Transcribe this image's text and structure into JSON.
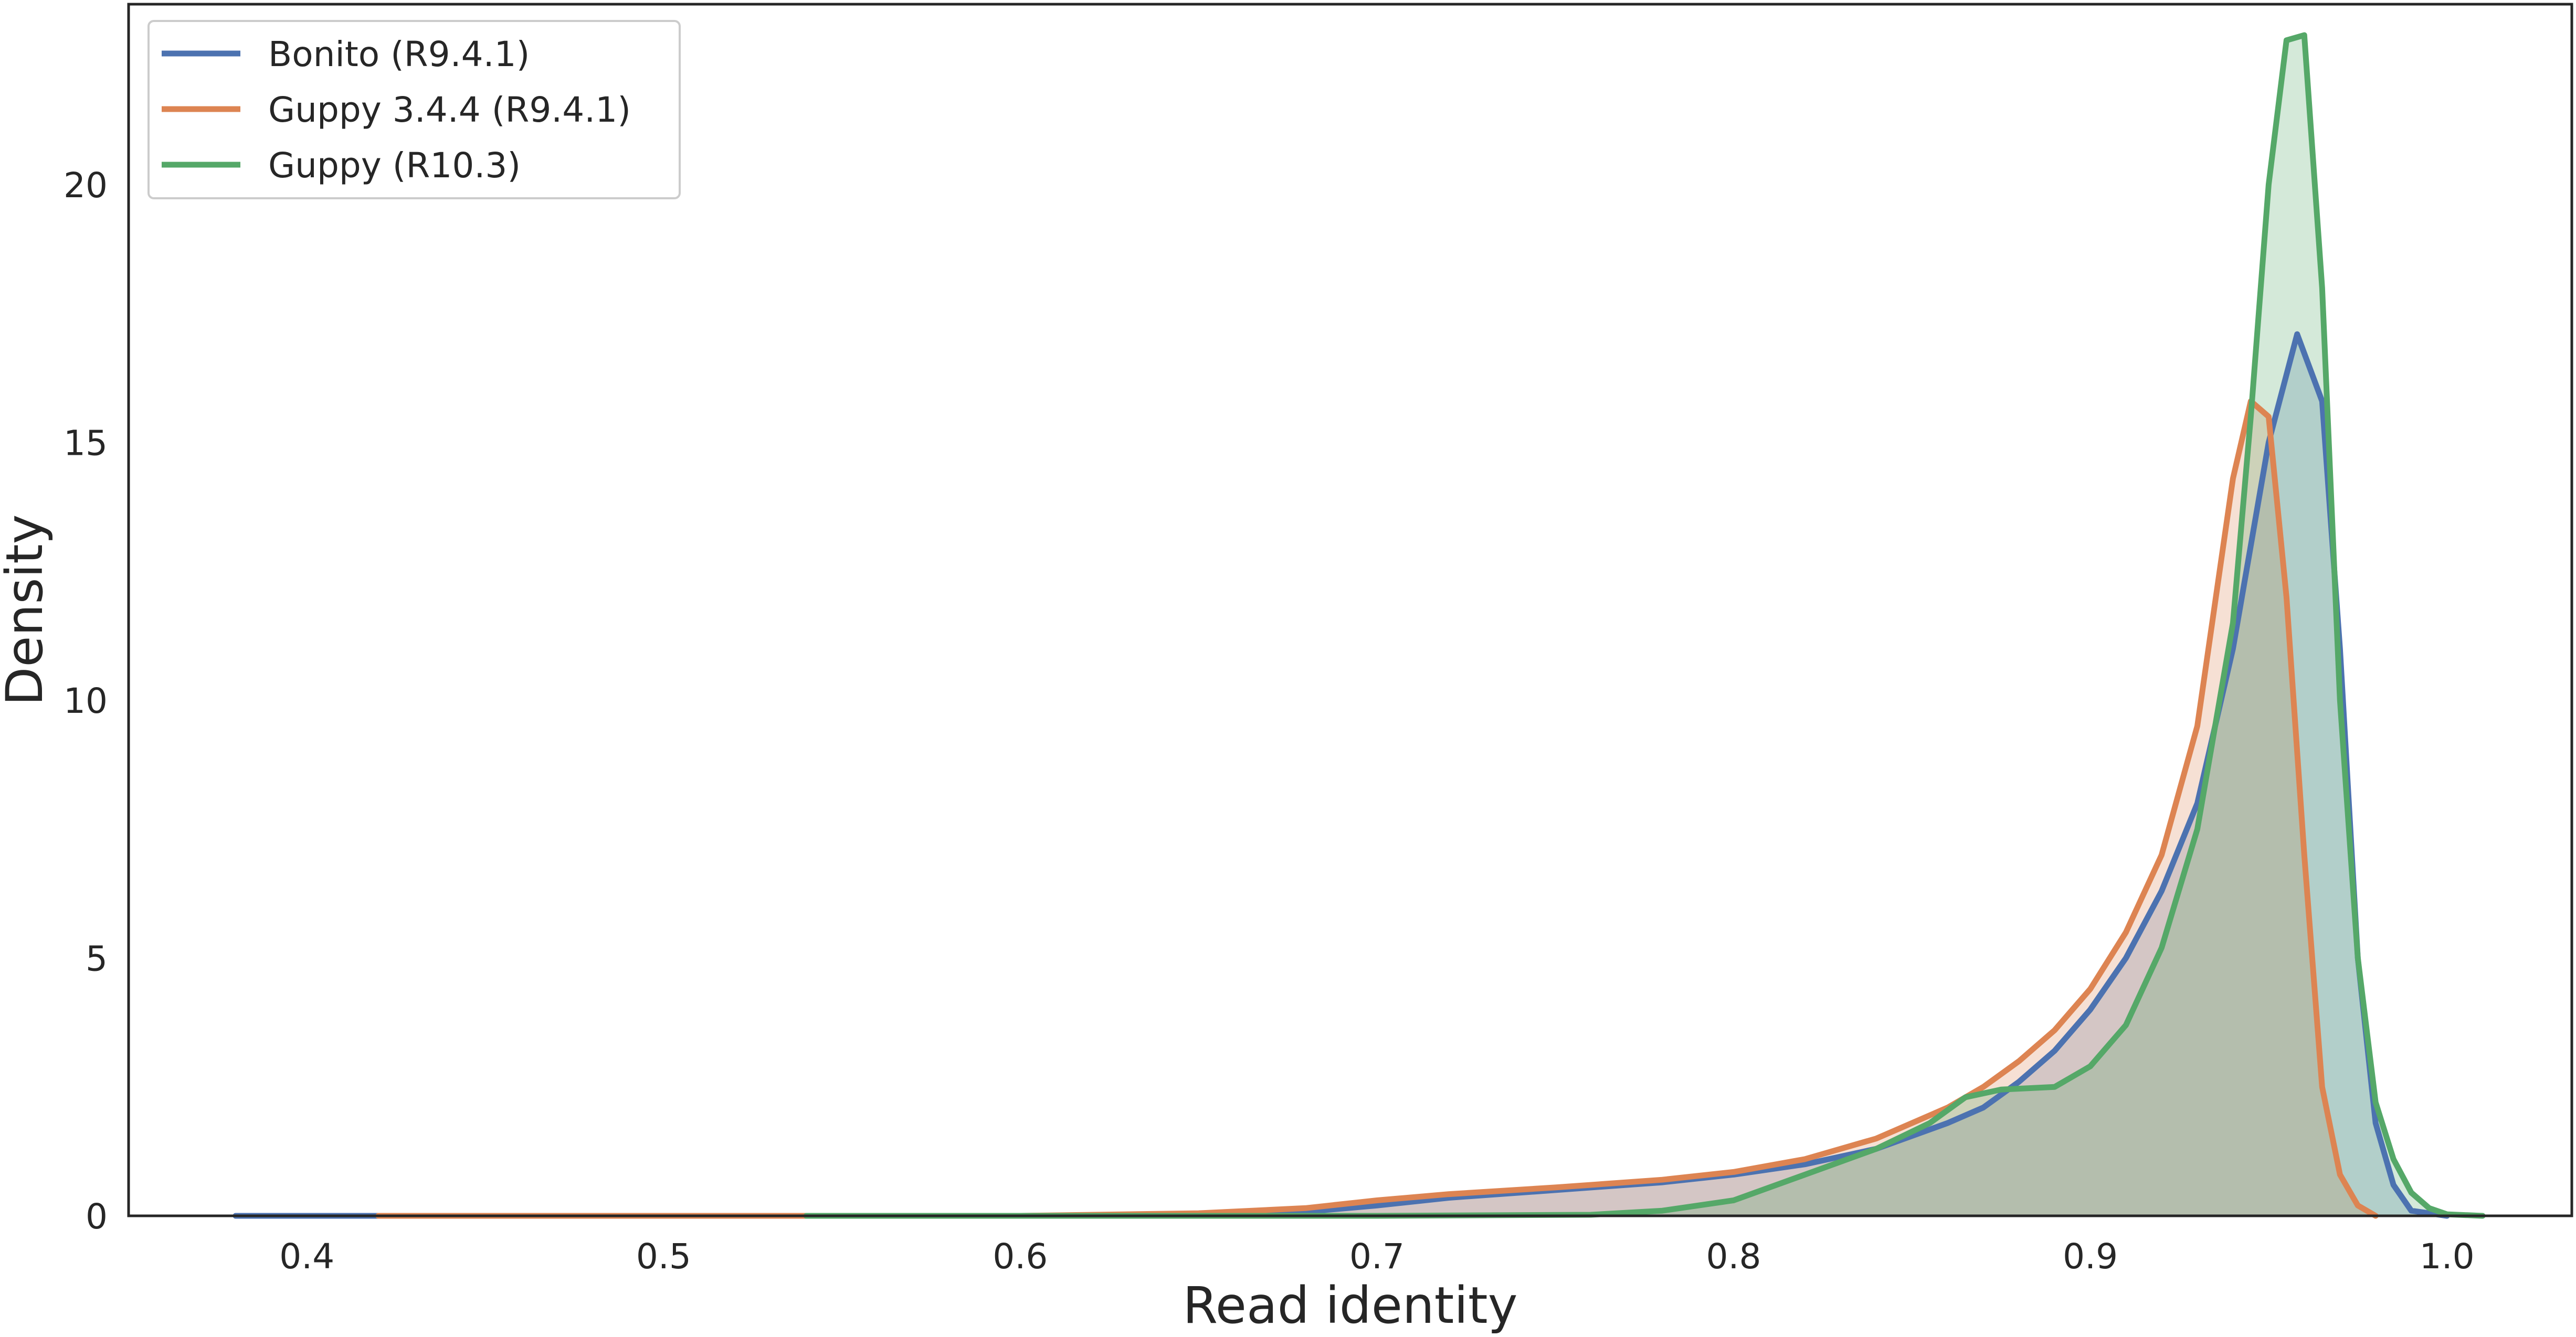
{
  "chart_data": {
    "type": "area",
    "xlabel": "Read identity",
    "ylabel": "Density",
    "xlim": [
      0.35,
      1.035
    ],
    "ylim": [
      0,
      23.5
    ],
    "xticks": [
      0.4,
      0.5,
      0.6,
      0.7,
      0.8,
      0.9,
      1.0
    ],
    "xtick_labels": [
      "0.4",
      "0.5",
      "0.6",
      "0.7",
      "0.8",
      "0.9",
      "1.0"
    ],
    "yticks": [
      0,
      5,
      10,
      15,
      20
    ],
    "ytick_labels": [
      "0",
      "5",
      "10",
      "15",
      "20"
    ],
    "grid": false,
    "legend": "top-left",
    "series": [
      {
        "name": "Bonito (R9.4.1)",
        "color": "#4c72b0",
        "points": [
          [
            0.38,
            0
          ],
          [
            0.42,
            0
          ],
          [
            0.5,
            0
          ],
          [
            0.6,
            0
          ],
          [
            0.65,
            0.02
          ],
          [
            0.68,
            0.08
          ],
          [
            0.7,
            0.2
          ],
          [
            0.72,
            0.35
          ],
          [
            0.75,
            0.5
          ],
          [
            0.78,
            0.65
          ],
          [
            0.8,
            0.8
          ],
          [
            0.82,
            1.0
          ],
          [
            0.84,
            1.3
          ],
          [
            0.86,
            1.8
          ],
          [
            0.87,
            2.1
          ],
          [
            0.88,
            2.6
          ],
          [
            0.89,
            3.2
          ],
          [
            0.9,
            4.0
          ],
          [
            0.91,
            5.0
          ],
          [
            0.92,
            6.3
          ],
          [
            0.93,
            8.0
          ],
          [
            0.94,
            11.0
          ],
          [
            0.95,
            15.0
          ],
          [
            0.958,
            17.1
          ],
          [
            0.965,
            15.8
          ],
          [
            0.97,
            11.0
          ],
          [
            0.975,
            5.0
          ],
          [
            0.98,
            1.8
          ],
          [
            0.985,
            0.6
          ],
          [
            0.99,
            0.1
          ],
          [
            1.0,
            0
          ]
        ]
      },
      {
        "name": "Guppy 3.4.4 (R9.4.1)",
        "color": "#dd8452",
        "points": [
          [
            0.42,
            0
          ],
          [
            0.5,
            0
          ],
          [
            0.6,
            0
          ],
          [
            0.65,
            0.05
          ],
          [
            0.68,
            0.15
          ],
          [
            0.7,
            0.3
          ],
          [
            0.72,
            0.42
          ],
          [
            0.75,
            0.55
          ],
          [
            0.78,
            0.7
          ],
          [
            0.8,
            0.85
          ],
          [
            0.82,
            1.1
          ],
          [
            0.84,
            1.5
          ],
          [
            0.86,
            2.1
          ],
          [
            0.87,
            2.5
          ],
          [
            0.88,
            3.0
          ],
          [
            0.89,
            3.6
          ],
          [
            0.9,
            4.4
          ],
          [
            0.91,
            5.5
          ],
          [
            0.92,
            7.0
          ],
          [
            0.93,
            9.5
          ],
          [
            0.94,
            14.3
          ],
          [
            0.945,
            15.8
          ],
          [
            0.95,
            15.5
          ],
          [
            0.955,
            12.0
          ],
          [
            0.96,
            7.0
          ],
          [
            0.965,
            2.5
          ],
          [
            0.97,
            0.8
          ],
          [
            0.975,
            0.2
          ],
          [
            0.98,
            0
          ]
        ]
      },
      {
        "name": "Guppy (R10.3)",
        "color": "#55a868",
        "points": [
          [
            0.54,
            0
          ],
          [
            0.6,
            0
          ],
          [
            0.7,
            0
          ],
          [
            0.76,
            0.02
          ],
          [
            0.78,
            0.1
          ],
          [
            0.8,
            0.3
          ],
          [
            0.82,
            0.8
          ],
          [
            0.84,
            1.3
          ],
          [
            0.855,
            1.8
          ],
          [
            0.865,
            2.3
          ],
          [
            0.875,
            2.45
          ],
          [
            0.89,
            2.5
          ],
          [
            0.9,
            2.9
          ],
          [
            0.91,
            3.7
          ],
          [
            0.92,
            5.2
          ],
          [
            0.93,
            7.5
          ],
          [
            0.94,
            11.5
          ],
          [
            0.945,
            15.5
          ],
          [
            0.95,
            20.0
          ],
          [
            0.955,
            22.8
          ],
          [
            0.96,
            22.9
          ],
          [
            0.965,
            18.0
          ],
          [
            0.97,
            10.0
          ],
          [
            0.975,
            5.0
          ],
          [
            0.98,
            2.2
          ],
          [
            0.985,
            1.1
          ],
          [
            0.99,
            0.45
          ],
          [
            0.995,
            0.15
          ],
          [
            1.0,
            0.03
          ],
          [
            1.01,
            0
          ]
        ]
      }
    ]
  }
}
